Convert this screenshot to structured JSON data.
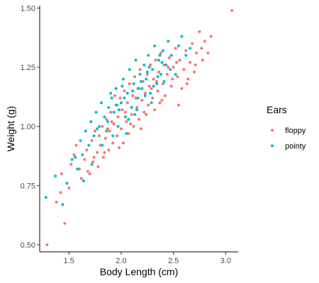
{
  "chart_data": {
    "type": "scatter",
    "title": "",
    "xlabel": "Body Length (cm)",
    "ylabel": "Weight (g)",
    "xlim": [
      1.22,
      3.12
    ],
    "ylim": [
      0.47,
      1.51
    ],
    "xticks": [
      {
        "value": 1.5,
        "label": "1.5"
      },
      {
        "value": 2.0,
        "label": "2.0"
      },
      {
        "value": 2.5,
        "label": "2.5"
      },
      {
        "value": 3.0,
        "label": "3.0"
      }
    ],
    "yticks": [
      {
        "value": 0.5,
        "label": "0.50"
      },
      {
        "value": 0.75,
        "label": "0.75"
      },
      {
        "value": 1.0,
        "label": "1.00"
      },
      {
        "value": 1.25,
        "label": "1.25"
      },
      {
        "value": 1.5,
        "label": "1.50"
      }
    ],
    "grid": false,
    "legend": {
      "title": "Ears",
      "placement": "right",
      "entries": [
        {
          "label": "floppy",
          "color": "#F8766D"
        },
        {
          "label": "pointy",
          "color": "#00BFC4"
        }
      ]
    },
    "series": [
      {
        "name": "floppy",
        "color": "#F8766D",
        "points": [
          [
            1.29,
            0.5
          ],
          [
            1.38,
            0.68
          ],
          [
            1.42,
            0.72
          ],
          [
            1.46,
            0.59
          ],
          [
            1.43,
            0.8
          ],
          [
            1.5,
            0.74
          ],
          [
            1.52,
            0.84
          ],
          [
            1.55,
            0.88
          ],
          [
            1.57,
            0.92
          ],
          [
            1.6,
            0.82
          ],
          [
            1.62,
            0.78
          ],
          [
            1.65,
            0.86
          ],
          [
            1.67,
            0.9
          ],
          [
            1.7,
            0.8
          ],
          [
            1.72,
            0.94
          ],
          [
            1.73,
            0.85
          ],
          [
            1.75,
            0.98
          ],
          [
            1.77,
            0.89
          ],
          [
            1.78,
            0.83
          ],
          [
            1.8,
            0.92
          ],
          [
            1.82,
            1.0
          ],
          [
            1.83,
            0.87
          ],
          [
            1.85,
            0.95
          ],
          [
            1.86,
            1.03
          ],
          [
            1.88,
            0.9
          ],
          [
            1.89,
            0.98
          ],
          [
            1.9,
            1.06
          ],
          [
            1.92,
            0.93
          ],
          [
            1.93,
            1.01
          ],
          [
            1.95,
            1.09
          ],
          [
            1.96,
            0.96
          ],
          [
            1.97,
            1.04
          ],
          [
            1.99,
            1.12
          ],
          [
            2.0,
            0.99
          ],
          [
            2.01,
            1.07
          ],
          [
            2.02,
            0.93
          ],
          [
            2.03,
            1.15
          ],
          [
            2.05,
            1.02
          ],
          [
            2.06,
            1.1
          ],
          [
            2.07,
            0.97
          ],
          [
            2.08,
            1.18
          ],
          [
            2.1,
            1.05
          ],
          [
            2.11,
            1.13
          ],
          [
            2.12,
            1.0
          ],
          [
            2.13,
            1.21
          ],
          [
            2.15,
            1.08
          ],
          [
            2.16,
            1.16
          ],
          [
            2.17,
            1.03
          ],
          [
            2.18,
            1.24
          ],
          [
            2.2,
            1.11
          ],
          [
            2.21,
            1.19
          ],
          [
            2.22,
            1.06
          ],
          [
            2.23,
            1.14
          ],
          [
            2.25,
            1.22
          ],
          [
            2.26,
            1.09
          ],
          [
            2.27,
            1.17
          ],
          [
            2.28,
            1.26
          ],
          [
            2.3,
            1.12
          ],
          [
            2.31,
            1.2
          ],
          [
            2.32,
            1.07
          ],
          [
            2.33,
            1.28
          ],
          [
            2.35,
            1.15
          ],
          [
            2.36,
            1.23
          ],
          [
            2.37,
            1.1
          ],
          [
            2.38,
            1.31
          ],
          [
            2.4,
            1.18
          ],
          [
            2.41,
            1.26
          ],
          [
            2.42,
            1.13
          ],
          [
            2.44,
            1.22
          ],
          [
            2.46,
            1.29
          ],
          [
            2.48,
            1.17
          ],
          [
            2.5,
            1.25
          ],
          [
            2.52,
            1.33
          ],
          [
            2.54,
            1.21
          ],
          [
            2.56,
            1.28
          ],
          [
            2.58,
            1.16
          ],
          [
            2.6,
            1.24
          ],
          [
            2.62,
            1.32
          ],
          [
            2.64,
            1.2
          ],
          [
            2.66,
            1.27
          ],
          [
            2.68,
            1.35
          ],
          [
            2.7,
            1.23
          ],
          [
            2.72,
            1.31
          ],
          [
            2.75,
            1.4
          ],
          [
            2.78,
            1.28
          ],
          [
            2.8,
            1.36
          ],
          [
            2.83,
            1.31
          ],
          [
            2.86,
            1.38
          ],
          [
            3.06,
            1.49
          ],
          [
            1.94,
            1.13
          ],
          [
            1.98,
            0.91
          ],
          [
            2.04,
            1.06
          ],
          [
            2.09,
            1.01
          ],
          [
            2.14,
            1.12
          ],
          [
            2.19,
            0.99
          ],
          [
            2.24,
            1.05
          ],
          [
            2.29,
            1.16
          ],
          [
            2.34,
            1.19
          ],
          [
            2.39,
            1.11
          ],
          [
            2.45,
            1.25
          ],
          [
            2.49,
            1.2
          ],
          [
            2.53,
            1.27
          ],
          [
            1.68,
            0.81
          ],
          [
            1.74,
            0.87
          ],
          [
            1.79,
            0.96
          ],
          [
            1.84,
            0.89
          ],
          [
            1.87,
            0.99
          ],
          [
            1.91,
            1.02
          ],
          [
            2.55,
            1.09
          ],
          [
            2.63,
            1.18
          ],
          [
            2.71,
            1.26
          ],
          [
            2.77,
            1.33
          ]
        ]
      },
      {
        "name": "pointy",
        "color": "#00BFC4",
        "points": [
          [
            1.28,
            0.7
          ],
          [
            1.37,
            0.79
          ],
          [
            1.44,
            0.67
          ],
          [
            1.48,
            0.76
          ],
          [
            1.53,
            0.86
          ],
          [
            1.58,
            0.82
          ],
          [
            1.61,
            0.94
          ],
          [
            1.63,
            0.88
          ],
          [
            1.66,
            0.98
          ],
          [
            1.69,
            0.92
          ],
          [
            1.71,
            1.02
          ],
          [
            1.74,
            0.96
          ],
          [
            1.76,
            1.06
          ],
          [
            1.79,
            1.0
          ],
          [
            1.81,
            1.1
          ],
          [
            1.84,
            1.04
          ],
          [
            1.86,
            0.98
          ],
          [
            1.88,
            1.08
          ],
          [
            1.91,
            1.12
          ],
          [
            1.93,
            1.06
          ],
          [
            1.95,
            1.16
          ],
          [
            1.97,
            1.0
          ],
          [
            2.0,
            1.1
          ],
          [
            2.02,
            1.2
          ],
          [
            2.04,
            1.04
          ],
          [
            2.06,
            1.14
          ],
          [
            2.08,
            1.24
          ],
          [
            2.1,
            1.08
          ],
          [
            2.12,
            1.18
          ],
          [
            2.14,
            1.28
          ],
          [
            2.16,
            1.12
          ],
          [
            2.18,
            1.22
          ],
          [
            2.2,
            1.16
          ],
          [
            2.22,
            1.26
          ],
          [
            2.24,
            1.2
          ],
          [
            2.26,
            1.3
          ],
          [
            2.28,
            1.14
          ],
          [
            2.3,
            1.24
          ],
          [
            2.32,
            1.34
          ],
          [
            2.34,
            1.18
          ],
          [
            2.36,
            1.28
          ],
          [
            2.38,
            1.22
          ],
          [
            2.4,
            1.32
          ],
          [
            2.43,
            1.26
          ],
          [
            2.45,
            1.36
          ],
          [
            2.48,
            1.3
          ],
          [
            2.52,
            1.22
          ],
          [
            2.55,
            1.34
          ],
          [
            2.58,
            1.38
          ],
          [
            2.62,
            1.3
          ],
          [
            2.66,
            1.33
          ],
          [
            1.72,
            0.84
          ],
          [
            1.82,
            0.92
          ],
          [
            1.87,
            1.02
          ],
          [
            1.92,
            0.96
          ],
          [
            1.98,
            1.07
          ],
          [
            2.03,
            1.12
          ],
          [
            2.07,
            1.03
          ],
          [
            2.11,
            1.15
          ],
          [
            2.15,
            1.07
          ],
          [
            2.19,
            1.19
          ],
          [
            2.23,
            1.13
          ],
          [
            2.27,
            1.25
          ],
          [
            2.31,
            1.17
          ],
          [
            2.35,
            1.21
          ],
          [
            2.39,
            1.27
          ],
          [
            2.47,
            1.24
          ],
          [
            1.64,
            0.77
          ],
          [
            1.77,
            0.99
          ],
          [
            1.96,
            1.09
          ],
          [
            2.05,
            0.97
          ],
          [
            2.17,
            1.16
          ],
          [
            2.29,
            1.1
          ],
          [
            2.41,
            1.19
          ],
          [
            1.56,
            0.87
          ],
          [
            1.9,
            1.14
          ],
          [
            2.01,
            1.17
          ],
          [
            2.13,
            1.05
          ],
          [
            2.25,
            1.23
          ],
          [
            2.37,
            1.3
          ]
        ]
      }
    ]
  }
}
